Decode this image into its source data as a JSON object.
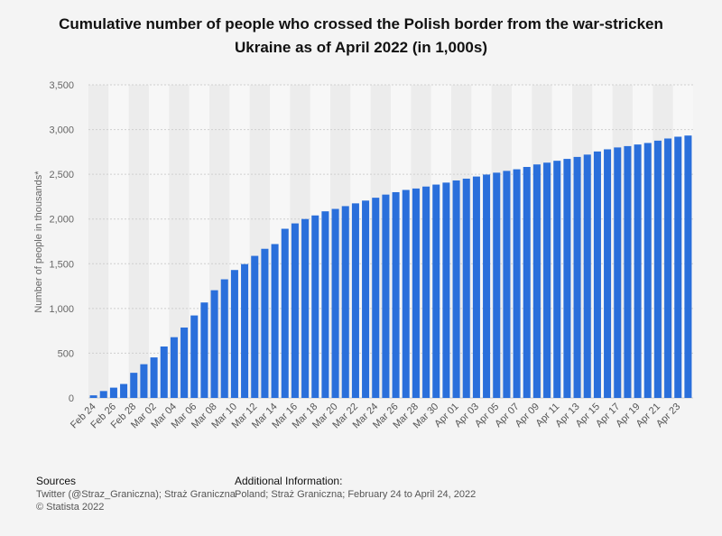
{
  "title": "Cumulative number of people who crossed the Polish border from the war-stricken Ukraine as of April 2022 (in 1,000s)",
  "footer": {
    "sources_heading": "Sources",
    "sources_line1": "Twitter (@Straz_Graniczna); Straż Graniczna",
    "sources_line2": "© Statista 2022",
    "additional_heading": "Additional Information:",
    "additional_text": "Poland; Straż Graniczna; February 24 to April 24, 2022"
  },
  "chart_data": {
    "type": "bar",
    "title": "Cumulative number of people who crossed the Polish border from the war-stricken Ukraine as of April 2022 (in 1,000s)",
    "ylabel": "Number of people in thousands*",
    "xlabel": "",
    "ylim": [
      0,
      3500
    ],
    "yticks": [
      "0",
      "500",
      "1,000",
      "1,500",
      "2,000",
      "2,500",
      "3,000",
      "3,500"
    ],
    "grid": true,
    "bar_color": "#2a6fdb",
    "categories": [
      "Feb 24",
      "Feb 25",
      "Feb 26",
      "Feb 27",
      "Feb 28",
      "Mar 01",
      "Mar 02",
      "Mar 03",
      "Mar 04",
      "Mar 05",
      "Mar 06",
      "Mar 07",
      "Mar 08",
      "Mar 09",
      "Mar 10",
      "Mar 11",
      "Mar 12",
      "Mar 13",
      "Mar 14",
      "Mar 15",
      "Mar 16",
      "Mar 17",
      "Mar 18",
      "Mar 19",
      "Mar 20",
      "Mar 21",
      "Mar 22",
      "Mar 23",
      "Mar 24",
      "Mar 25",
      "Mar 26",
      "Mar 27",
      "Mar 28",
      "Mar 29",
      "Mar 30",
      "Mar 31",
      "Apr 01",
      "Apr 02",
      "Apr 03",
      "Apr 04",
      "Apr 05",
      "Apr 06",
      "Apr 07",
      "Apr 08",
      "Apr 09",
      "Apr 10",
      "Apr 11",
      "Apr 12",
      "Apr 13",
      "Apr 14",
      "Apr 15",
      "Apr 16",
      "Apr 17",
      "Apr 18",
      "Apr 19",
      "Apr 20",
      "Apr 21",
      "Apr 22",
      "Apr 23",
      "Apr 24"
    ],
    "xtick_labels": [
      "Feb 24",
      "Feb 26",
      "Feb 28",
      "Mar 02",
      "Mar 04",
      "Mar 06",
      "Mar 08",
      "Mar 10",
      "Mar 12",
      "Mar 14",
      "Mar 16",
      "Mar 18",
      "Mar 20",
      "Mar 22",
      "Mar 24",
      "Mar 26",
      "Mar 28",
      "Mar 30",
      "Apr 01",
      "Apr 03",
      "Apr 05",
      "Apr 07",
      "Apr 09",
      "Apr 11",
      "Apr 13",
      "Apr 15",
      "Apr 17",
      "Apr 19",
      "Apr 21",
      "Apr 23"
    ],
    "values": [
      29,
      77,
      115,
      156,
      281,
      377,
      453,
      575,
      679,
      787,
      922,
      1067,
      1204,
      1326,
      1430,
      1496,
      1588,
      1667,
      1720,
      1891,
      1951,
      2000,
      2040,
      2086,
      2113,
      2144,
      2175,
      2206,
      2238,
      2273,
      2300,
      2325,
      2341,
      2363,
      2385,
      2407,
      2431,
      2451,
      2475,
      2497,
      2518,
      2538,
      2556,
      2582,
      2610,
      2630,
      2651,
      2672,
      2694,
      2720,
      2755,
      2779,
      2800,
      2815,
      2833,
      2850,
      2876,
      2900,
      2920,
      2933
    ]
  }
}
